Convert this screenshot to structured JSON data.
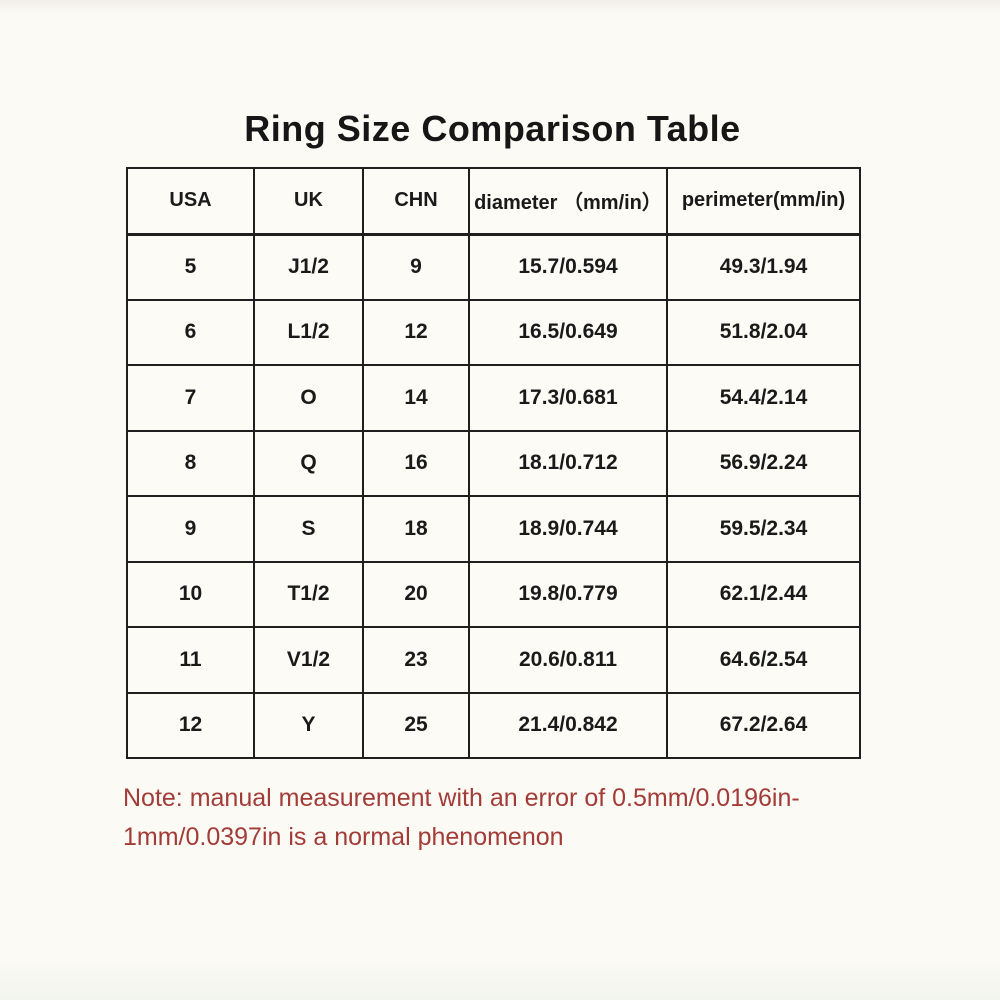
{
  "page": {
    "title": "Ring Size Comparison Table",
    "background_color": "#fbfaf4"
  },
  "table": {
    "headers": [
      "USA",
      "UK",
      "CHN",
      "diameter （mm/in）",
      "perimeter(mm/in)"
    ],
    "rows": [
      [
        "5",
        "J1/2",
        "9",
        "15.7/0.594",
        "49.3/1.94"
      ],
      [
        "6",
        "L1/2",
        "12",
        "16.5/0.649",
        "51.8/2.04"
      ],
      [
        "7",
        "O",
        "14",
        "17.3/0.681",
        "54.4/2.14"
      ],
      [
        "8",
        "Q",
        "16",
        "18.1/0.712",
        "56.9/2.24"
      ],
      [
        "9",
        "S",
        "18",
        "18.9/0.744",
        "59.5/2.34"
      ],
      [
        "10",
        "T1/2",
        "20",
        "19.8/0.779",
        "62.1/2.44"
      ],
      [
        "11",
        "V1/2",
        "23",
        "20.6/0.811",
        "64.6/2.54"
      ],
      [
        "12",
        "Y",
        "25",
        "21.4/0.842",
        "67.2/2.64"
      ]
    ],
    "border_color": "#1f1f1f",
    "text_color": "#1a1a1a"
  },
  "note": {
    "text": "Note: manual measurement with an error of 0.5mm/0.0196in-1mm/0.0397in is a normal phenomenon",
    "color": "#a33b38"
  }
}
